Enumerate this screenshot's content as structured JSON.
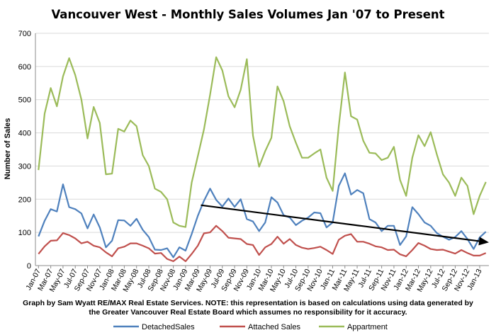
{
  "chart_data": {
    "type": "line",
    "title": "Vancouver West - Monthly Sales Volumes Jan '07 to Present",
    "xlabel": "",
    "ylabel": "Number of Sales",
    "ylim": [
      0,
      700
    ],
    "yticks": [
      0,
      100,
      200,
      300,
      400,
      500,
      600,
      700
    ],
    "grid": true,
    "legend_position": "bottom",
    "x_tick_labels": [
      "Jan-07",
      "Mar-07",
      "May-07",
      "Jul-07",
      "Sep-07",
      "Nov-07",
      "Jan-08",
      "Mar-08",
      "May-08",
      "Jul-08",
      "Sep-08",
      "Nov-08",
      "Jan-09",
      "Mar-09",
      "May-09",
      "Jul-09",
      "Sep-09",
      "Nov-09",
      "Jan-10",
      "Mar-10",
      "May-10",
      "Jul-10",
      "Sep-10",
      "Nov-10",
      "Jan-11",
      "Mar-11",
      "May-11",
      "Jul-11",
      "Sep-11",
      "Nov-11",
      "Jan-12",
      "Mar-12",
      "May-12",
      "Jul-12",
      "Sep-12",
      "Nov-12",
      "Jan-13"
    ],
    "series": [
      {
        "name": "DetachedSales",
        "color": "#4f81bd",
        "values": [
          88,
          135,
          170,
          163,
          245,
          176,
          170,
          157,
          112,
          154,
          115,
          55,
          75,
          137,
          136,
          120,
          141,
          108,
          86,
          48,
          47,
          52,
          25,
          55,
          45,
          95,
          150,
          195,
          232,
          198,
          178,
          202,
          177,
          200,
          140,
          133,
          104,
          130,
          206,
          190,
          152,
          145,
          122,
          135,
          145,
          160,
          158,
          115,
          130,
          240,
          278,
          214,
          228,
          218,
          140,
          130,
          104,
          120,
          120,
          62,
          88,
          176,
          155,
          130,
          120,
          98,
          87,
          78,
          86,
          104,
          80,
          50,
          85,
          102
        ]
      },
      {
        "name": "Attached Sales",
        "color": "#c0504d",
        "values": [
          35,
          58,
          75,
          76,
          98,
          92,
          82,
          67,
          72,
          60,
          55,
          40,
          28,
          52,
          57,
          67,
          67,
          60,
          52,
          36,
          38,
          20,
          13,
          27,
          13,
          35,
          60,
          97,
          100,
          120,
          104,
          84,
          82,
          80,
          65,
          62,
          32,
          55,
          65,
          87,
          66,
          80,
          62,
          54,
          50,
          53,
          57,
          47,
          35,
          78,
          90,
          95,
          72,
          72,
          66,
          58,
          55,
          47,
          48,
          34,
          28,
          47,
          68,
          60,
          50,
          47,
          48,
          42,
          36,
          47,
          38,
          30,
          30,
          38
        ]
      },
      {
        "name": "Appartment",
        "color": "#9bbb59",
        "values": [
          288,
          458,
          535,
          480,
          570,
          625,
          574,
          500,
          383,
          478,
          430,
          275,
          277,
          412,
          404,
          437,
          420,
          333,
          300,
          232,
          222,
          200,
          130,
          120,
          116,
          250,
          330,
          410,
          515,
          628,
          588,
          510,
          477,
          530,
          622,
          392,
          298,
          345,
          385,
          540,
          495,
          420,
          370,
          325,
          325,
          338,
          350,
          265,
          225,
          420,
          582,
          450,
          440,
          376,
          340,
          338,
          318,
          325,
          358,
          258,
          210,
          325,
          393,
          360,
          402,
          335,
          275,
          250,
          210,
          265,
          240,
          155,
          210,
          252
        ]
      }
    ],
    "annotations": [
      {
        "type": "trend_arrow",
        "from": [
          26.5,
          182
        ],
        "to": [
          73.5,
          70
        ],
        "color": "#000000"
      }
    ]
  },
  "footnote": {
    "line1": "Graph by Sam Wyatt RE/MAX Real Estate Services.    NOTE: this representation is based on calculations using data generated by",
    "line2": "the Greater Vancouver Real Estate Board which assumes no responsibility for it accuracy."
  }
}
